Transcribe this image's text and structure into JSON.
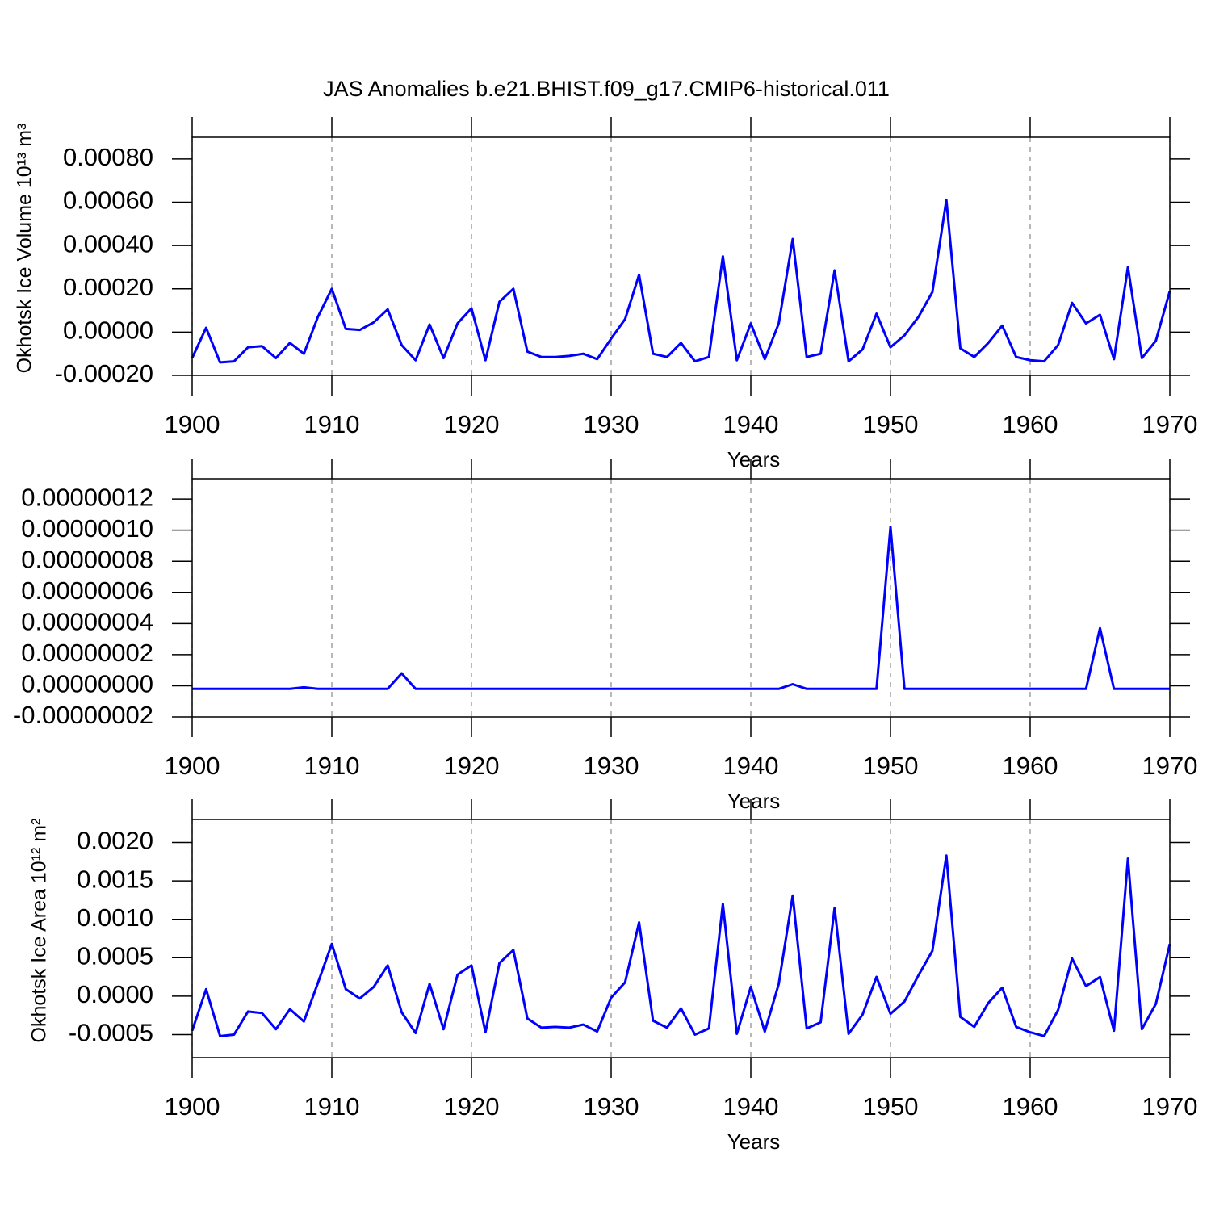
{
  "chart_data": [
    {
      "type": "line",
      "title": "JAS Anomalies b.e21.BHIST.f09_g17.CMIP6-historical.011",
      "x_label": "Years",
      "y_label": "Okhotsk Ice Volume 10¹³ m³",
      "x": [
        1900,
        1901,
        1902,
        1903,
        1904,
        1905,
        1906,
        1907,
        1908,
        1909,
        1910,
        1911,
        1912,
        1913,
        1914,
        1915,
        1916,
        1917,
        1918,
        1919,
        1920,
        1921,
        1922,
        1923,
        1924,
        1925,
        1926,
        1927,
        1928,
        1929,
        1930,
        1931,
        1932,
        1933,
        1934,
        1935,
        1936,
        1937,
        1938,
        1939,
        1940,
        1941,
        1942,
        1943,
        1944,
        1945,
        1946,
        1947,
        1948,
        1949,
        1950,
        1951,
        1952,
        1953,
        1954,
        1955,
        1956,
        1957,
        1958,
        1959,
        1960,
        1961,
        1962,
        1963,
        1964,
        1965,
        1966,
        1967,
        1968,
        1969,
        1970
      ],
      "values": [
        -0.00012,
        2e-05,
        -0.00014,
        -0.000135,
        -7e-05,
        -6.5e-05,
        -0.00012,
        -5e-05,
        -0.0001,
        7e-05,
        0.0002,
        1.5e-05,
        1e-05,
        4.5e-05,
        0.000105,
        -6e-05,
        -0.00013,
        3.5e-05,
        -0.00012,
        4e-05,
        0.00011,
        -0.00013,
        0.00014,
        0.0002,
        -9e-05,
        -0.000115,
        -0.000115,
        -0.00011,
        -0.0001,
        -0.000125,
        -3e-05,
        6e-05,
        0.000265,
        -0.0001,
        -0.000115,
        -5e-05,
        -0.000135,
        -0.000115,
        0.00035,
        -0.00013,
        4e-05,
        -0.000125,
        4e-05,
        0.00043,
        -0.000115,
        -0.0001,
        0.000285,
        -0.000135,
        -8e-05,
        8.5e-05,
        -7e-05,
        -1.5e-05,
        7e-05,
        0.000185,
        0.00061,
        -7.5e-05,
        -0.000115,
        -5e-05,
        3e-05,
        -0.000115,
        -0.00013,
        -0.000135,
        -6e-05,
        0.000135,
        4e-05,
        8e-05,
        -0.000125,
        0.0003,
        -0.00012,
        -4e-05,
        0.00019
      ],
      "color": "#0000ff",
      "xlim": [
        1900,
        1970
      ],
      "xticks": [
        1900,
        1910,
        1920,
        1930,
        1940,
        1950,
        1960,
        1970
      ],
      "ylim": [
        -0.0002,
        0.0009
      ],
      "yticks": [
        {
          "value": -0.0002,
          "label": "-0.00020"
        },
        {
          "value": 0,
          "label": "0.00000"
        },
        {
          "value": 0.0002,
          "label": "0.00020"
        },
        {
          "value": 0.0004,
          "label": "0.00040"
        },
        {
          "value": 0.0006,
          "label": "0.00060"
        },
        {
          "value": 0.0008,
          "label": "0.00080"
        }
      ],
      "grid": true
    },
    {
      "type": "line",
      "x_label": "Years",
      "x": [
        1900,
        1901,
        1902,
        1903,
        1904,
        1905,
        1906,
        1907,
        1908,
        1909,
        1910,
        1911,
        1912,
        1913,
        1914,
        1915,
        1916,
        1917,
        1918,
        1919,
        1920,
        1921,
        1922,
        1923,
        1924,
        1925,
        1926,
        1927,
        1928,
        1929,
        1930,
        1931,
        1932,
        1933,
        1934,
        1935,
        1936,
        1937,
        1938,
        1939,
        1940,
        1941,
        1942,
        1943,
        1944,
        1945,
        1946,
        1947,
        1948,
        1949,
        1950,
        1951,
        1952,
        1953,
        1954,
        1955,
        1956,
        1957,
        1958,
        1959,
        1960,
        1961,
        1962,
        1963,
        1964,
        1965,
        1966,
        1967,
        1968,
        1969,
        1970
      ],
      "values": [
        -2e-09,
        -2e-09,
        -2e-09,
        -2e-09,
        -2e-09,
        -2e-09,
        -2e-09,
        -2e-09,
        -1e-09,
        -2e-09,
        -2e-09,
        -2e-09,
        -2e-09,
        -2e-09,
        -2e-09,
        8e-09,
        -2e-09,
        -2e-09,
        -2e-09,
        -2e-09,
        -2e-09,
        -2e-09,
        -2e-09,
        -2e-09,
        -2e-09,
        -2e-09,
        -2e-09,
        -2e-09,
        -2e-09,
        -2e-09,
        -2e-09,
        -2e-09,
        -2e-09,
        -2e-09,
        -2e-09,
        -2e-09,
        -2e-09,
        -2e-09,
        -2e-09,
        -2e-09,
        -2e-09,
        -2e-09,
        -2e-09,
        1e-09,
        -2e-09,
        -2e-09,
        -2e-09,
        -2e-09,
        -2e-09,
        -2e-09,
        1.02e-07,
        -2e-09,
        -2e-09,
        -2e-09,
        -2e-09,
        -2e-09,
        -2e-09,
        -2e-09,
        -2e-09,
        -2e-09,
        -2e-09,
        -2e-09,
        -2e-09,
        -2e-09,
        -2e-09,
        3.7e-08,
        -2e-09,
        -2e-09,
        -2e-09,
        -2e-09,
        -2e-09
      ],
      "color": "#0000ff",
      "xlim": [
        1900,
        1970
      ],
      "xticks": [
        1900,
        1910,
        1920,
        1930,
        1940,
        1950,
        1960,
        1970
      ],
      "ylim": [
        -2e-08,
        1.33e-07
      ],
      "yticks": [
        {
          "value": -2e-08,
          "label": "-0.00000002"
        },
        {
          "value": 0,
          "label": "0.00000000"
        },
        {
          "value": 2e-08,
          "label": "0.00000002"
        },
        {
          "value": 4e-08,
          "label": "0.00000004"
        },
        {
          "value": 6e-08,
          "label": "0.00000006"
        },
        {
          "value": 8e-08,
          "label": "0.00000008"
        },
        {
          "value": 1e-07,
          "label": "0.00000010"
        },
        {
          "value": 1.2e-07,
          "label": "0.00000012"
        }
      ],
      "grid": true
    },
    {
      "type": "line",
      "x_label": "Years",
      "y_label": "Okhotsk Ice Area 10¹² m²",
      "x": [
        1900,
        1901,
        1902,
        1903,
        1904,
        1905,
        1906,
        1907,
        1908,
        1909,
        1910,
        1911,
        1912,
        1913,
        1914,
        1915,
        1916,
        1917,
        1918,
        1919,
        1920,
        1921,
        1922,
        1923,
        1924,
        1925,
        1926,
        1927,
        1928,
        1929,
        1930,
        1931,
        1932,
        1933,
        1934,
        1935,
        1936,
        1937,
        1938,
        1939,
        1940,
        1941,
        1942,
        1943,
        1944,
        1945,
        1946,
        1947,
        1948,
        1949,
        1950,
        1951,
        1952,
        1953,
        1954,
        1955,
        1956,
        1957,
        1958,
        1959,
        1960,
        1961,
        1962,
        1963,
        1964,
        1965,
        1966,
        1967,
        1968,
        1969,
        1970
      ],
      "values": [
        -0.00045,
        9e-05,
        -0.00052,
        -0.0005,
        -0.0002,
        -0.00022,
        -0.00043,
        -0.00017,
        -0.00033,
        0.00017,
        0.00068,
        9e-05,
        -3e-05,
        0.00012,
        0.0004,
        -0.00021,
        -0.00048,
        0.00016,
        -0.00043,
        0.00028,
        0.0004,
        -0.00047,
        0.00043,
        0.0006,
        -0.00029,
        -0.00041,
        -0.0004,
        -0.00041,
        -0.00037,
        -0.00046,
        -2e-05,
        0.00018,
        0.00096,
        -0.00032,
        -0.00041,
        -0.00016,
        -0.0005,
        -0.00042,
        0.0012,
        -0.00049,
        0.00012,
        -0.00046,
        0.00016,
        0.00131,
        -0.00042,
        -0.00034,
        0.00115,
        -0.00049,
        -0.00024,
        0.00025,
        -0.00023,
        -7e-05,
        0.00027,
        0.00059,
        0.00183,
        -0.00027,
        -0.0004,
        -9e-05,
        0.00011,
        -0.0004,
        -0.00047,
        -0.00052,
        -0.00018,
        0.00049,
        0.00013,
        0.00025,
        -0.00045,
        0.00179,
        -0.00043,
        -0.0001,
        0.00068
      ],
      "color": "#0000ff",
      "xlim": [
        1900,
        1970
      ],
      "xticks": [
        1900,
        1910,
        1920,
        1930,
        1940,
        1950,
        1960,
        1970
      ],
      "ylim": [
        -0.0008,
        0.0023
      ],
      "yticks": [
        {
          "value": -0.0005,
          "label": "-0.0005"
        },
        {
          "value": 0,
          "label": "0.0000"
        },
        {
          "value": 0.0005,
          "label": "0.0005"
        },
        {
          "value": 0.001,
          "label": "0.0010"
        },
        {
          "value": 0.0015,
          "label": "0.0015"
        },
        {
          "value": 0.002,
          "label": "0.0020"
        }
      ],
      "grid": true
    }
  ]
}
